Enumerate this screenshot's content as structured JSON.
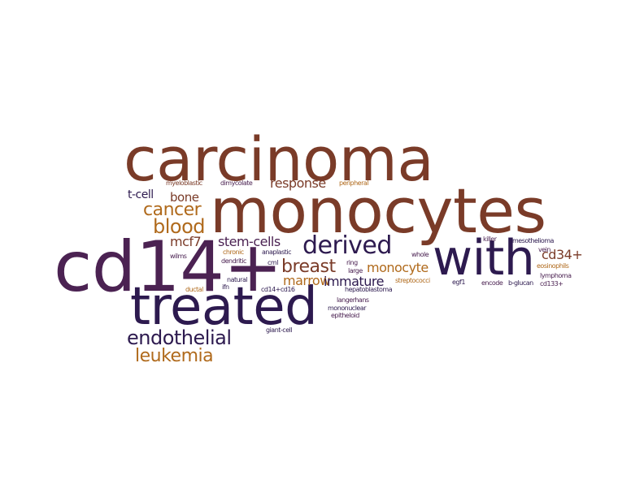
{
  "colors": {
    "rust": "#7a3b28",
    "indigo": "#2d1a4f",
    "ochre": "#b06a1c",
    "plum": "#4b2252"
  },
  "words": {
    "carcinoma": "carcinoma",
    "monocytes": "monocytes",
    "cd14plus": "cd14+",
    "treated": "treated",
    "with": "with",
    "derived": "derived",
    "endothelial": "endothelial",
    "leukemia": "leukemia",
    "blood": "blood",
    "cancer": "cancer",
    "bone": "bone",
    "t_cell": "t-cell",
    "response": "response",
    "breast": "breast",
    "mcf7": "mcf7",
    "stem_cells": "stem-cells",
    "monocyte": "monocyte",
    "marrow": "marrow",
    "immature": "immature",
    "cd34plus": "cd34+",
    "myeloblastic": "myeloblastic",
    "dimycolate": "dimycolate",
    "peripheral": "peripheral",
    "chronic": "chronic",
    "anaplastic": "anaplastic",
    "wilms": "wilms",
    "dendritic": "dendritic",
    "cml": "cml",
    "ring": "ring",
    "large": "large",
    "natural": "natural",
    "ifn": "ifn",
    "ductal": "ductal",
    "cd14_cd16": "cd14+cd16",
    "hepatoblastoma": "hepatoblastoma",
    "streptococci": "streptococci",
    "langerhans": "langerhans",
    "mononuclear": "mononuclear",
    "epitheloid": "epitheloid",
    "giant_cell": "giant-cell",
    "whole": "whole",
    "egf1": "egf1",
    "killer": "killer",
    "mesothelioma": "mesothelioma",
    "vein": "vein",
    "eosinophils": "eosinophils",
    "lymphoma": "lymphoma",
    "encode": "encode",
    "b_glucan": "b-glucan",
    "cd133plus": "cd133+"
  }
}
